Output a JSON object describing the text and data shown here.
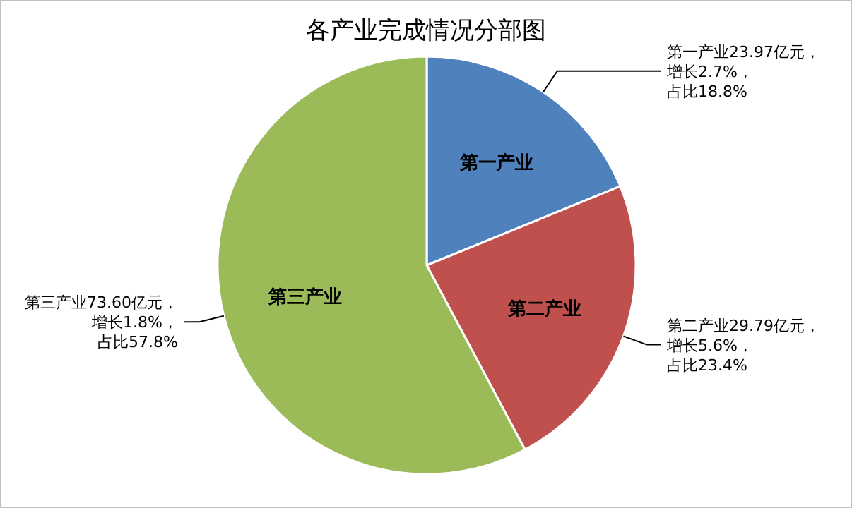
{
  "chart_data": {
    "type": "pie",
    "title": "各产业完成情况分部图",
    "categories": [
      "第一产业",
      "第二产业",
      "第三产业"
    ],
    "values": [
      23.97,
      29.79,
      73.6
    ],
    "colors": [
      "#4f81bd",
      "#c0504d",
      "#9bbb59"
    ],
    "value_labels": [
      "第一产业23.97亿元，增长2.7%，占比18.8%",
      "第二产业29.79亿元，增长5.6%，占比23.4%",
      "第三产业73.60亿元，增长1.8%，占比57.8%"
    ]
  }
}
